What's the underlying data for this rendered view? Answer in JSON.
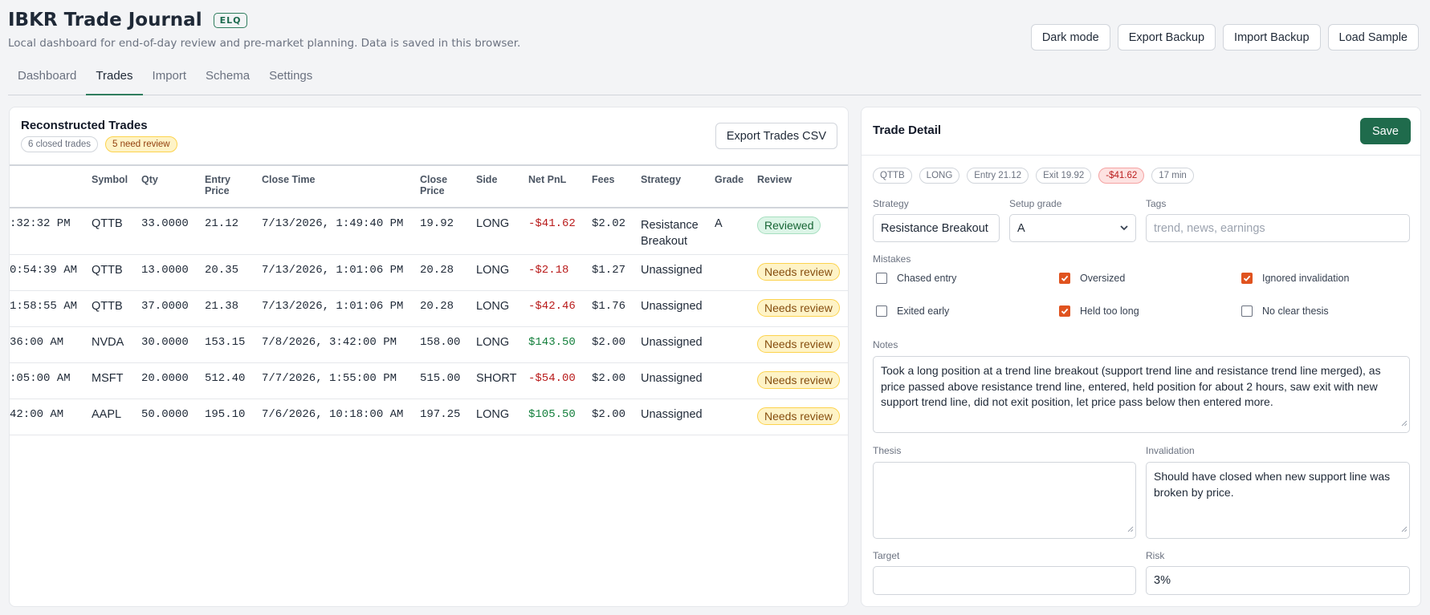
{
  "app": {
    "title": "IBKR Trade Journal",
    "badge": "ELQ",
    "subtitle": "Local dashboard for end-of-day review and pre-market planning. Data is saved in this browser."
  },
  "top_actions": {
    "dark_mode": "Dark mode",
    "export_backup": "Export Backup",
    "import_backup": "Import Backup",
    "load_sample": "Load Sample"
  },
  "tabs": [
    {
      "label": "Dashboard",
      "active": false
    },
    {
      "label": "Trades",
      "active": true
    },
    {
      "label": "Import",
      "active": false
    },
    {
      "label": "Schema",
      "active": false
    },
    {
      "label": "Settings",
      "active": false
    }
  ],
  "trades": {
    "title": "Reconstructed Trades",
    "closed_count": "6 closed trades",
    "review_count": "5 need review",
    "export_label": "Export Trades CSV",
    "columns": [
      "Symbol",
      "Qty",
      "Entry Price",
      "Close Time",
      "Close Price",
      "Side",
      "Net PnL",
      "Fees",
      "Strategy",
      "Grade",
      "Review"
    ],
    "rows": [
      {
        "open_time": ":32:32 PM",
        "symbol": "QTTB",
        "qty": "33.0000",
        "entry_price": "21.12",
        "close_time": "7/13/2026, 1:49:40 PM",
        "close_price": "19.92",
        "side": "LONG",
        "net_pnl": "-$41.62",
        "fees": "$2.02",
        "strategy": "Resistance Breakout",
        "grade": "A",
        "review": "Reviewed",
        "pnl_sign": "neg"
      },
      {
        "open_time": "0:54:39 AM",
        "symbol": "QTTB",
        "qty": "13.0000",
        "entry_price": "20.35",
        "close_time": "7/13/2026, 1:01:06 PM",
        "close_price": "20.28",
        "side": "LONG",
        "net_pnl": "-$2.18",
        "fees": "$1.27",
        "strategy": "Unassigned",
        "grade": "",
        "review": "Needs review",
        "pnl_sign": "neg"
      },
      {
        "open_time": "1:58:55 AM",
        "symbol": "QTTB",
        "qty": "37.0000",
        "entry_price": "21.38",
        "close_time": "7/13/2026, 1:01:06 PM",
        "close_price": "20.28",
        "side": "LONG",
        "net_pnl": "-$42.46",
        "fees": "$1.76",
        "strategy": "Unassigned",
        "grade": "",
        "review": "Needs review",
        "pnl_sign": "neg"
      },
      {
        "open_time": "36:00 AM",
        "symbol": "NVDA",
        "qty": "30.0000",
        "entry_price": "153.15",
        "close_time": "7/8/2026, 3:42:00 PM",
        "close_price": "158.00",
        "side": "LONG",
        "net_pnl": "$143.50",
        "fees": "$2.00",
        "strategy": "Unassigned",
        "grade": "",
        "review": "Needs review",
        "pnl_sign": "pos"
      },
      {
        "open_time": ":05:00 AM",
        "symbol": "MSFT",
        "qty": "20.0000",
        "entry_price": "512.40",
        "close_time": "7/7/2026, 1:55:00 PM",
        "close_price": "515.00",
        "side": "SHORT",
        "net_pnl": "-$54.00",
        "fees": "$2.00",
        "strategy": "Unassigned",
        "grade": "",
        "review": "Needs review",
        "pnl_sign": "neg"
      },
      {
        "open_time": "42:00 AM",
        "symbol": "AAPL",
        "qty": "50.0000",
        "entry_price": "195.10",
        "close_time": "7/6/2026, 10:18:00 AM",
        "close_price": "197.25",
        "side": "LONG",
        "net_pnl": "$105.50",
        "fees": "$2.00",
        "strategy": "Unassigned",
        "grade": "",
        "review": "Needs review",
        "pnl_sign": "pos"
      }
    ]
  },
  "detail": {
    "title": "Trade Detail",
    "save_label": "Save",
    "chips": {
      "symbol": "QTTB",
      "side": "LONG",
      "entry": "Entry 21.12",
      "exit": "Exit 19.92",
      "pnl": "-$41.62",
      "duration": "17 min"
    },
    "strategy_label": "Strategy",
    "strategy_value": "Resistance Breakout",
    "grade_label": "Setup grade",
    "grade_value": "A",
    "tags_label": "Tags",
    "tags_placeholder": "trend, news, earnings",
    "mistakes_label": "Mistakes",
    "mistakes": [
      {
        "label": "Chased entry",
        "checked": false
      },
      {
        "label": "Oversized",
        "checked": true
      },
      {
        "label": "Ignored invalidation",
        "checked": true
      },
      {
        "label": "Exited early",
        "checked": false
      },
      {
        "label": "Held too long",
        "checked": true
      },
      {
        "label": "No clear thesis",
        "checked": false
      }
    ],
    "notes_label": "Notes",
    "notes_value": "Took a long position at a trend line breakout (support trend line and resistance trend line merged), as price passed above resistance trend line, entered, held position for about 2 hours, saw exit with new support trend line, did not exit position, let price pass below then entered more.",
    "thesis_label": "Thesis",
    "thesis_value": "",
    "invalidation_label": "Invalidation",
    "invalidation_value": "Should have closed when new support line was broken by price.",
    "target_label": "Target",
    "target_value": "",
    "risk_label": "Risk",
    "risk_value": "3%"
  },
  "colors": {
    "accent": "#2f7d5e",
    "save_button": "#1f6b4c",
    "negative": "#b91c1c",
    "positive": "#15803d",
    "checkbox_checked": "#e0531f"
  }
}
